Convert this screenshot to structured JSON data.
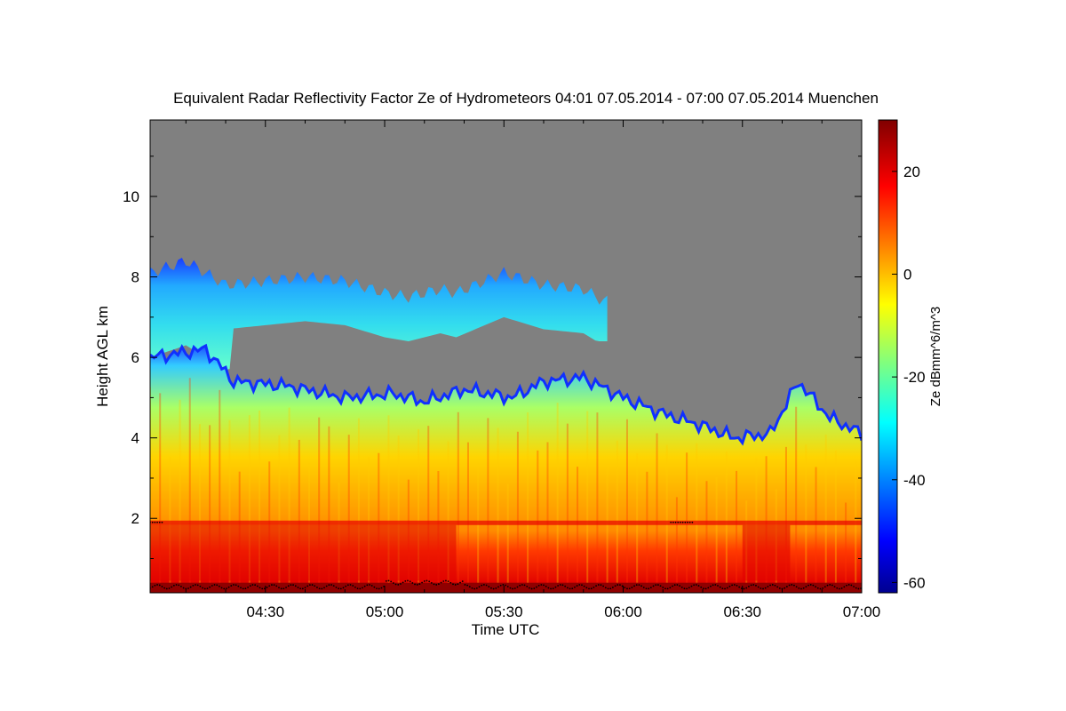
{
  "chart_data": {
    "type": "heatmap",
    "title": "Equivalent Radar Reflectivity Factor Ze of Hydrometeors   04:01 07.05.2014 - 07:00 07.05.2014 Muenchen",
    "xlabel": "Time UTC",
    "ylabel": "Height AGL km",
    "colorbar_label": "Ze dBmm^6/m^3",
    "x_ticks": [
      "04:30",
      "05:00",
      "05:30",
      "06:00",
      "06:30",
      "07:00"
    ],
    "x_tick_minutes": [
      270,
      300,
      330,
      360,
      390,
      420
    ],
    "xlim_minutes": [
      241,
      420
    ],
    "y_ticks": [
      2,
      4,
      6,
      8,
      10
    ],
    "ylim": [
      0.15,
      11.9
    ],
    "colorbar_ticks": [
      20,
      0,
      -20,
      -40,
      -60
    ],
    "colorbar_range": [
      -62,
      30
    ],
    "no_data_color": "#808080",
    "colormap": [
      "#00008f",
      "#0000ff",
      "#00ffff",
      "#ffff00",
      "#ff0000",
      "#800000"
    ],
    "series": [
      {
        "name": "",
        "echo_top_km": [
          {
            "t": 241,
            "h": 8.1
          },
          {
            "t": 250,
            "h": 8.4
          },
          {
            "t": 260,
            "h": 7.8
          },
          {
            "t": 270,
            "h": 7.9
          },
          {
            "t": 280,
            "h": 8.0
          },
          {
            "t": 290,
            "h": 7.9
          },
          {
            "t": 300,
            "h": 7.6
          },
          {
            "t": 306,
            "h": 7.5
          },
          {
            "t": 314,
            "h": 7.7
          },
          {
            "t": 318,
            "h": 7.6
          },
          {
            "t": 330,
            "h": 8.1
          },
          {
            "t": 340,
            "h": 7.8
          },
          {
            "t": 350,
            "h": 7.7
          },
          {
            "t": 355,
            "h": 7.4
          }
        ],
        "lower_cloud_top_km": [
          {
            "t": 241,
            "h": 6.0
          },
          {
            "t": 255,
            "h": 6.2
          },
          {
            "t": 262,
            "h": 5.4
          },
          {
            "t": 275,
            "h": 5.3
          },
          {
            "t": 290,
            "h": 5.0
          },
          {
            "t": 302,
            "h": 5.1
          },
          {
            "t": 310,
            "h": 4.9
          },
          {
            "t": 320,
            "h": 5.2
          },
          {
            "t": 332,
            "h": 5.0
          },
          {
            "t": 340,
            "h": 5.4
          },
          {
            "t": 350,
            "h": 5.5
          },
          {
            "t": 360,
            "h": 5.0
          },
          {
            "t": 370,
            "h": 4.6
          },
          {
            "t": 380,
            "h": 4.3
          },
          {
            "t": 388,
            "h": 4.0
          },
          {
            "t": 397,
            "h": 4.1
          },
          {
            "t": 404,
            "h": 5.4
          },
          {
            "t": 412,
            "h": 4.5
          },
          {
            "t": 420,
            "h": 4.1
          }
        ],
        "melting_layer_km": 1.9
      }
    ],
    "grid": false,
    "legend": "right"
  }
}
